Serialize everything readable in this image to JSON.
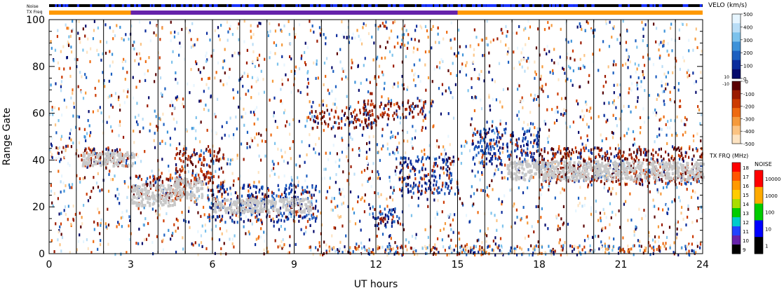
{
  "header": {
    "noise_label": "Noise",
    "txfreq_label": "TX Freq"
  },
  "colorbars": {
    "velo": {
      "title": "VELO (km/s)",
      "ticks_pos": [
        "500",
        "400",
        "300",
        "200",
        "100",
        "0"
      ],
      "ticks_neg": [
        "-0",
        "-100",
        "-200",
        "-300",
        "-400",
        "-500"
      ],
      "pos_edge_labels": [
        "10"
      ],
      "neg_edge_labels": [
        "-10"
      ],
      "colors_pos": [
        "#e6f5ff",
        "#b9ddf6",
        "#7cc2ec",
        "#3d92d9",
        "#1c5fc0",
        "#0b2c9c",
        "#050a6b"
      ],
      "colors_neg": [
        "#5a0000",
        "#9a1a00",
        "#cc3a00",
        "#ee6a10",
        "#f59a3c",
        "#fbc382",
        "#fde3c1"
      ]
    },
    "txfrq": {
      "title": "TX FRQ (MHz)",
      "ticks": [
        "18",
        "17",
        "16",
        "15",
        "14",
        "13",
        "12",
        "11",
        "10",
        "9"
      ],
      "colors": [
        "#ff0000",
        "#ff5500",
        "#ff9900",
        "#ffcc00",
        "#aadd00",
        "#00cc00",
        "#00cccc",
        "#2244ff",
        "#6622aa",
        "#000000"
      ]
    },
    "noise": {
      "title": "NOISE",
      "ticks": [
        "10000",
        "1000",
        "100",
        "10",
        "1"
      ],
      "colors": [
        "#ff0000",
        "#ffaa00",
        "#00cc00",
        "#0000ff",
        "#000000"
      ]
    }
  },
  "chart_data": {
    "type": "heatmap",
    "title": "",
    "xlabel": "UT hours",
    "ylabel": "Range Gate",
    "xlim": [
      0,
      24
    ],
    "ylim": [
      0,
      100
    ],
    "x_ticks": [
      "0",
      "3",
      "6",
      "9",
      "12",
      "15",
      "18",
      "21",
      "24"
    ],
    "y_ticks": [
      "0",
      "20",
      "40",
      "60",
      "80",
      "100"
    ],
    "scan_boundaries_hours": [
      1.0,
      2.0,
      3.0,
      4.0,
      5.0,
      6.0,
      7.0,
      8.0,
      9.0,
      10.0,
      11.0,
      12.0,
      13.0,
      14.0,
      15.0,
      16.0,
      17.0,
      18.0,
      19.0,
      20.0,
      21.0,
      22.0,
      23.0
    ],
    "tx_freq_bar": [
      {
        "start": 0,
        "end": 3,
        "color": "#ff9900",
        "freq": "16"
      },
      {
        "start": 3,
        "end": 15,
        "color": "#6622aa",
        "freq": "10"
      },
      {
        "start": 15,
        "end": 24,
        "color": "#ff9900",
        "freq": "16"
      }
    ],
    "ground_scatter_regions": [
      {
        "x0": 3.0,
        "x1": 4.6,
        "y0": 21,
        "y1": 30
      },
      {
        "x0": 4.6,
        "x1": 5.6,
        "y0": 24,
        "y1": 33
      },
      {
        "x0": 6.0,
        "x1": 9.6,
        "y0": 18,
        "y1": 24
      },
      {
        "x0": 1.2,
        "x1": 3.1,
        "y0": 38,
        "y1": 44
      },
      {
        "x0": 16.8,
        "x1": 24.0,
        "y0": 32,
        "y1": 40
      }
    ],
    "echo_bands": [
      {
        "x0": 0.0,
        "x1": 0.6,
        "y0": 40,
        "y1": 46,
        "kind": "mixed"
      },
      {
        "x0": 1.1,
        "x1": 2.9,
        "y0": 38,
        "y1": 46,
        "kind": "neg"
      },
      {
        "x0": 3.0,
        "x1": 5.0,
        "y0": 24,
        "y1": 34,
        "kind": "neg"
      },
      {
        "x0": 4.6,
        "x1": 6.4,
        "y0": 30,
        "y1": 46,
        "kind": "neg"
      },
      {
        "x0": 5.8,
        "x1": 9.8,
        "y0": 14,
        "y1": 30,
        "kind": "pos"
      },
      {
        "x0": 9.5,
        "x1": 12.0,
        "y0": 54,
        "y1": 62,
        "kind": "neg"
      },
      {
        "x0": 11.5,
        "x1": 13.8,
        "y0": 58,
        "y1": 66,
        "kind": "neg"
      },
      {
        "x0": 12.8,
        "x1": 15.0,
        "y0": 26,
        "y1": 42,
        "kind": "pos"
      },
      {
        "x0": 11.8,
        "x1": 13.0,
        "y0": 12,
        "y1": 20,
        "kind": "pos"
      },
      {
        "x0": 15.5,
        "x1": 18.0,
        "y0": 38,
        "y1": 54,
        "kind": "pos"
      },
      {
        "x0": 18.0,
        "x1": 24.0,
        "y0": 30,
        "y1": 46,
        "kind": "neg"
      },
      {
        "x0": 9.5,
        "x1": 24.0,
        "y0": 0,
        "y1": 4,
        "kind": "mixed"
      }
    ]
  }
}
